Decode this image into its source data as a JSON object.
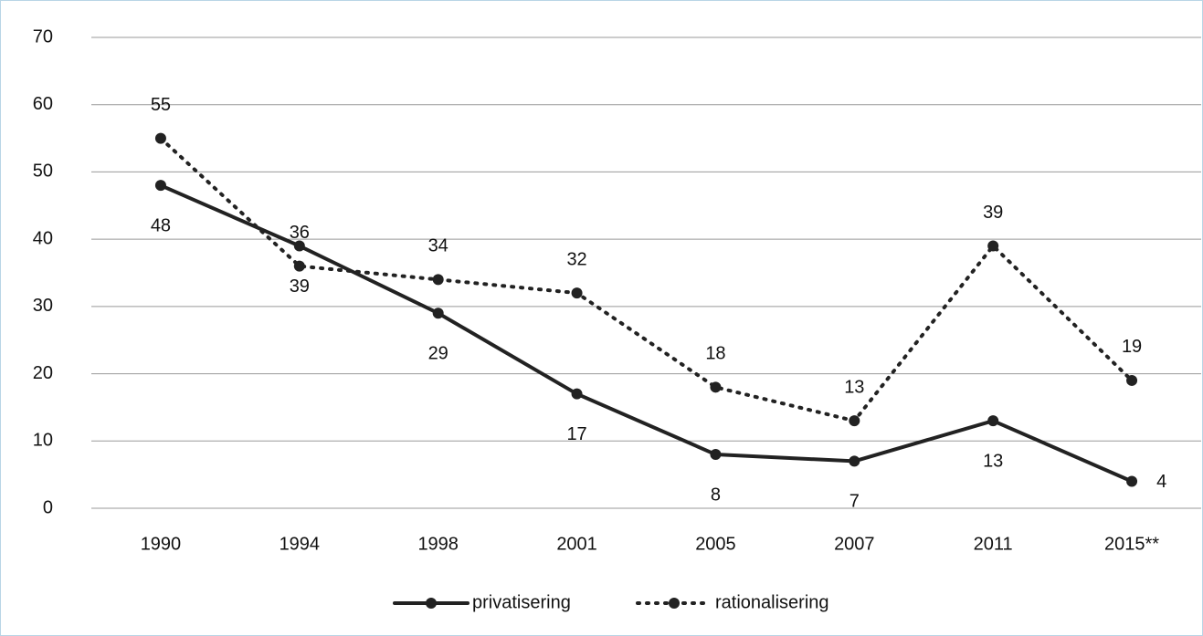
{
  "chart_data": {
    "type": "line",
    "categories": [
      "1990",
      "1994",
      "1998",
      "2001",
      "2005",
      "2007",
      "2011",
      "2015**"
    ],
    "series": [
      {
        "name": "privatisering",
        "color": "#222222",
        "line_style": "solid",
        "values": [
          48,
          39,
          29,
          17,
          8,
          7,
          13,
          4
        ]
      },
      {
        "name": "rationalisering",
        "color": "#222222",
        "line_style": "dotted",
        "values": [
          55,
          36,
          34,
          32,
          18,
          13,
          39,
          19
        ]
      }
    ],
    "ylim": [
      0,
      70
    ],
    "yticks": [
      0,
      10,
      20,
      30,
      40,
      50,
      60,
      70
    ],
    "grid": true,
    "legend": "bottom"
  }
}
